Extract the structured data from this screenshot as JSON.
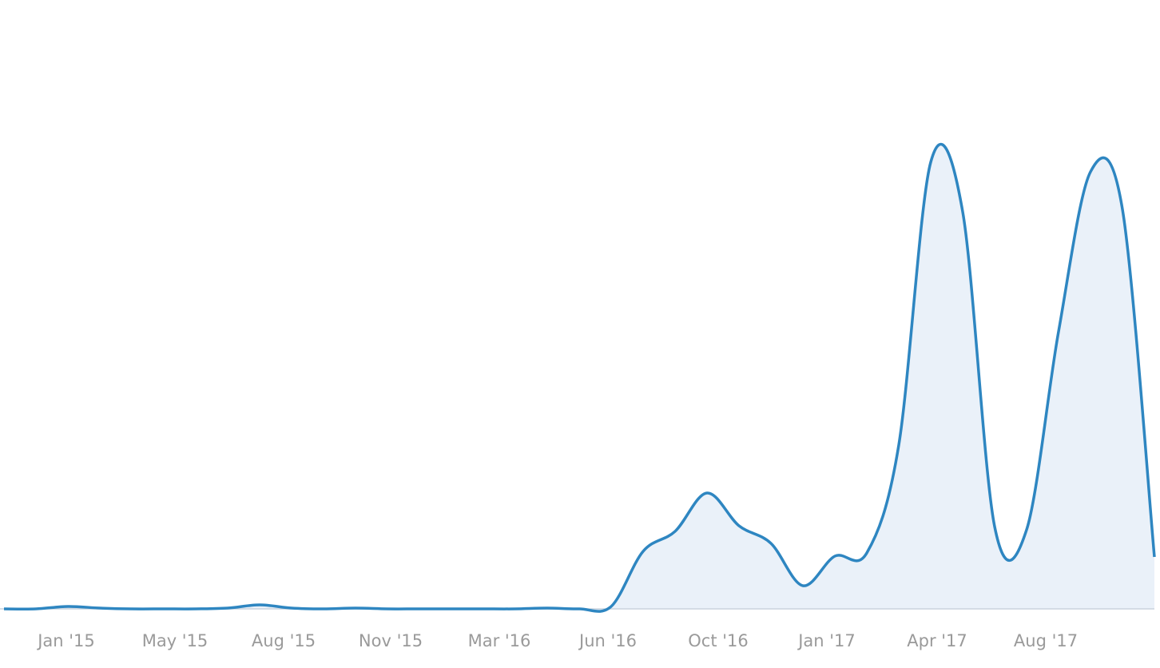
{
  "chart_data": {
    "type": "area",
    "x": [
      0,
      1,
      2,
      3,
      4,
      5,
      6,
      7,
      8,
      9,
      10,
      11,
      12,
      13,
      14,
      15,
      16,
      17,
      18,
      19,
      20,
      21,
      22,
      23,
      24,
      25,
      26,
      27,
      28,
      29,
      30,
      31,
      32,
      33,
      34,
      35,
      36
    ],
    "series": [
      {
        "color": "#2e86c1",
        "values": [
          0,
          0,
          3,
          1,
          0,
          0,
          0,
          1,
          5,
          1,
          0,
          1,
          0,
          0,
          0,
          0,
          0,
          1,
          0,
          3,
          72,
          97,
          145,
          104,
          82,
          29,
          66,
          70,
          205,
          559,
          497,
          103,
          99,
          347,
          547,
          500,
          65
        ]
      }
    ],
    "fill": "#eaf1f9",
    "xlim": [
      -0.125,
      36.175
    ],
    "ylim": [
      0,
      762
    ],
    "xticks": [
      {
        "value": 1.95,
        "label": "Jan '15"
      },
      {
        "value": 5.35,
        "label": "May '15"
      },
      {
        "value": 8.75,
        "label": "Aug '15"
      },
      {
        "value": 12.1,
        "label": "Nov '15"
      },
      {
        "value": 15.5,
        "label": "Mar '16"
      },
      {
        "value": 18.9,
        "label": "Jun '16"
      },
      {
        "value": 22.35,
        "label": "Oct '16"
      },
      {
        "value": 25.75,
        "label": "Jan '17"
      },
      {
        "value": 29.2,
        "label": "Apr '17"
      },
      {
        "value": 32.6,
        "label": "Aug '17"
      }
    ]
  }
}
